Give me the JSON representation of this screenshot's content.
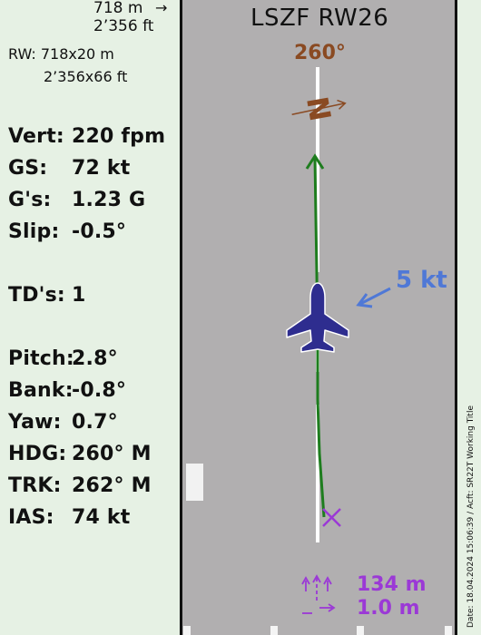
{
  "runway_length": {
    "meters": "718 m",
    "feet": "2’356 ft",
    "arrow": "→"
  },
  "runway_dims": {
    "label": "RW: 718x20 m",
    "feet": "2’356x66 ft"
  },
  "stats": [
    {
      "label": "Vert:",
      "value": "220 fpm"
    },
    {
      "label": "GS:",
      "value": "72 kt"
    },
    {
      "label": "G's:",
      "value": "1.23 G"
    },
    {
      "label": "Slip:",
      "value": "-0.5°"
    },
    {
      "label": "TD's:",
      "value": "1"
    },
    {
      "label": "Pitch:",
      "value": "2.8°"
    },
    {
      "label": "Bank:",
      "value": "-0.8°"
    },
    {
      "label": "Yaw:",
      "value": "0.7°"
    },
    {
      "label": "HDG:",
      "value": "260° M"
    },
    {
      "label": "TRK:",
      "value": "262° M"
    },
    {
      "label": "IAS:",
      "value": "74 kt"
    }
  ],
  "runway_view": {
    "title": "LSZF  RW26",
    "heading": "260°",
    "compass_letter": "N",
    "wind": "5 kt",
    "touchdown_distance": "134 m",
    "lateral_offset": "1.0 m",
    "caption": "Date: 18.04.2024 15:06:39 / Acft: SR22T Working Title"
  },
  "colors": {
    "panel_bg": "#e6f1e4",
    "runway_gray": "#b1afb0",
    "heading_brown": "#8a4a22",
    "wind_blue": "#4f78d6",
    "track_green": "#1e7d1e",
    "aircraft_navy": "#2e2d8f",
    "touchdown_purple": "#9b39d6"
  }
}
